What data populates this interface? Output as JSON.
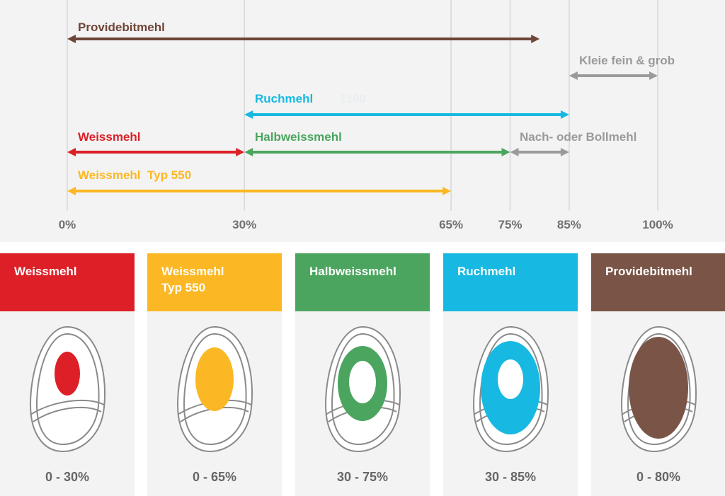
{
  "colors": {
    "providebitmehl": "#7a5547",
    "kleie": "#9a9a9a",
    "ruchmehl": "#17b9e2",
    "weissmehl": "#dd2027",
    "halbweissmehl": "#4ba55f",
    "bollmehl": "#9a9a9a",
    "weissmehl550": "#fbb824",
    "gridline": "#d7d7d7",
    "axis_label": "#707070",
    "outline": "#8a8a8a",
    "range_text": "#666666"
  },
  "axis": {
    "ticks": [
      {
        "label": "0%",
        "value": 0
      },
      {
        "label": "30%",
        "value": 30
      },
      {
        "label": "65%",
        "value": 65
      },
      {
        "label": "75%",
        "value": 75
      },
      {
        "label": "85%",
        "value": 85
      },
      {
        "label": "100%",
        "value": 100
      }
    ]
  },
  "ranges": [
    {
      "id": "providebitmehl",
      "label": "Providebitmehl",
      "start": 0,
      "end": 80,
      "color": "#6e4538",
      "label_size": "large"
    },
    {
      "id": "kleie",
      "label": "Kleie fein & grob",
      "start": 85,
      "end": 100,
      "color": "#9a9a9a"
    },
    {
      "id": "ruchmehl",
      "label": "Ruchmehl",
      "extra": "1100",
      "start": 30,
      "end": 85,
      "color": "#17b9e2"
    },
    {
      "id": "weissmehl",
      "label": "Weissmehl",
      "start": 0,
      "end": 30,
      "color": "#dd2027"
    },
    {
      "id": "halbweissmehl",
      "label": "Halbweissmehl",
      "start": 30,
      "end": 75,
      "color": "#4ba55f"
    },
    {
      "id": "bollmehl",
      "label": "Nach- oder Bollmehl",
      "start": 75,
      "end": 85,
      "color": "#9a9a9a"
    },
    {
      "id": "weissmehl550",
      "label": "Weissmehl",
      "label_suffix": "Typ 550",
      "start": 0,
      "end": 65,
      "color": "#fbb824"
    }
  ],
  "cards": [
    {
      "id": "weissmehl",
      "title_lines": [
        "Weissmehl"
      ],
      "range": "0 - 30%",
      "color": "#dd2027",
      "fill": "dot"
    },
    {
      "id": "weissmehl550",
      "title_lines": [
        "Weissmehl",
        "Typ 550"
      ],
      "range": "0 - 65%",
      "color": "#fbb824",
      "fill": "oval"
    },
    {
      "id": "halbweissmehl",
      "title_lines": [
        "Halbweissmehl"
      ],
      "range": "30 - 75%",
      "color": "#4ba55f",
      "fill": "ring"
    },
    {
      "id": "ruchmehl",
      "title_lines": [
        "Ruchmehl"
      ],
      "range": "30 - 85%",
      "color": "#17b9e2",
      "fill": "ring-wide"
    },
    {
      "id": "providebitmehl",
      "title_lines": [
        "Providebitmehl"
      ],
      "range": "0 - 80%",
      "color": "#7a5547",
      "fill": "full"
    }
  ]
}
